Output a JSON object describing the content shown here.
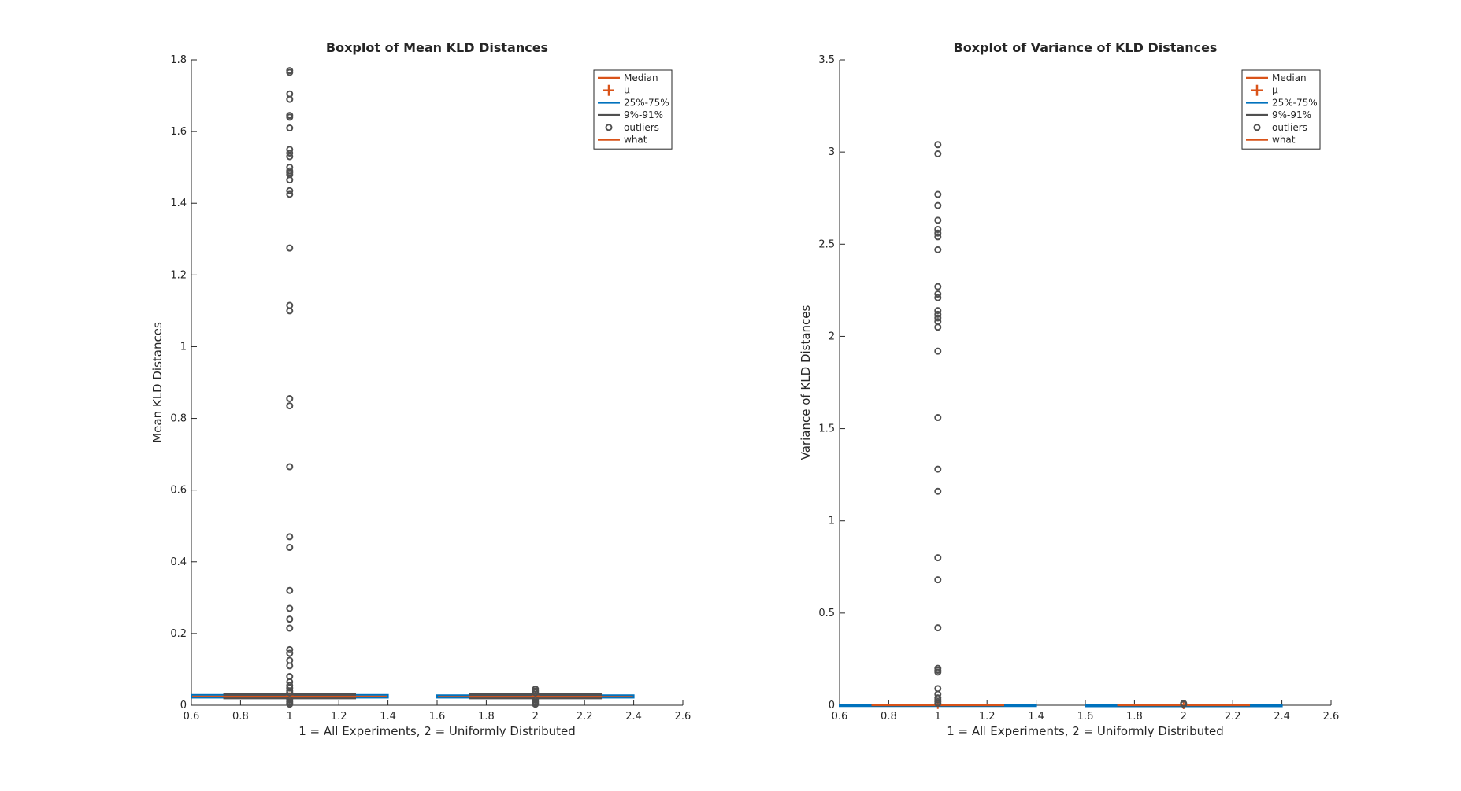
{
  "chart_data": [
    {
      "type": "box",
      "title": "Boxplot of Mean KLD Distances",
      "xlabel": "1 = All Experiments, 2 = Uniformly Distributed",
      "ylabel": "Mean KLD Distances",
      "xlim": [
        0.6,
        2.6
      ],
      "ylim": [
        0,
        1.8
      ],
      "xticks": [
        "0.6",
        "0.8",
        "1",
        "1.2",
        "1.4",
        "1.6",
        "1.8",
        "2",
        "2.2",
        "2.4",
        "2.6"
      ],
      "yticks": [
        "0",
        "0.2",
        "0.4",
        "0.6",
        "0.8",
        "1",
        "1.2",
        "1.4",
        "1.6",
        "1.8"
      ],
      "legend": {
        "position": "top-right",
        "items": [
          {
            "label": "Median",
            "marker": "line",
            "color": "#D95319"
          },
          {
            "label": "μ",
            "marker": "plus",
            "color": "#D95319"
          },
          {
            "label": "25%-75%",
            "marker": "line",
            "color": "#0072BD"
          },
          {
            "label": "9%-91%",
            "marker": "line",
            "color": "#505050"
          },
          {
            "label": "outliers",
            "marker": "circle",
            "color": "#505050"
          },
          {
            "label": "what",
            "marker": "line",
            "color": "#D95319"
          }
        ]
      },
      "boxes": [
        {
          "x": 1,
          "median": 0.024,
          "mean": 0.025,
          "q1": 0.021,
          "q3": 0.029,
          "p9": 0.02,
          "p91": 0.03,
          "outliers": [
            1.77,
            1.765,
            1.705,
            1.69,
            1.645,
            1.64,
            1.61,
            1.55,
            1.54,
            1.53,
            1.5,
            1.49,
            1.485,
            1.48,
            1.465,
            1.435,
            1.425,
            1.275,
            1.115,
            1.1,
            0.855,
            0.835,
            0.665,
            0.47,
            0.44,
            0.32,
            0.27,
            0.24,
            0.215,
            0.155,
            0.145,
            0.125,
            0.11,
            0.08,
            0.065,
            0.055,
            0.048,
            0.04,
            0.035,
            0.015,
            0.01,
            0.006,
            0.003
          ]
        },
        {
          "x": 2,
          "median": 0.024,
          "mean": 0.025,
          "q1": 0.021,
          "q3": 0.028,
          "p9": 0.02,
          "p91": 0.03,
          "outliers": [
            0.045,
            0.04,
            0.035,
            0.015,
            0.01,
            0.006,
            0.003
          ]
        }
      ]
    },
    {
      "type": "box",
      "title": "Boxplot of Variance of KLD Distances",
      "xlabel": "1 = All Experiments, 2 = Uniformly Distributed",
      "ylabel": "Variance of KLD Distances",
      "xlim": [
        0.6,
        2.6
      ],
      "ylim": [
        0,
        3.5
      ],
      "xticks": [
        "0.6",
        "0.8",
        "1",
        "1.2",
        "1.4",
        "1.6",
        "1.8",
        "2",
        "2.2",
        "2.4",
        "2.6"
      ],
      "yticks": [
        "0",
        "0.5",
        "1",
        "1.5",
        "2",
        "2.5",
        "3",
        "3.5"
      ],
      "legend": {
        "position": "top-right",
        "items": [
          {
            "label": "Median",
            "marker": "line",
            "color": "#D95319"
          },
          {
            "label": "μ",
            "marker": "plus",
            "color": "#D95319"
          },
          {
            "label": "25%-75%",
            "marker": "line",
            "color": "#0072BD"
          },
          {
            "label": "9%-91%",
            "marker": "line",
            "color": "#505050"
          },
          {
            "label": "outliers",
            "marker": "circle",
            "color": "#505050"
          },
          {
            "label": "what",
            "marker": "line",
            "color": "#D95319"
          }
        ]
      },
      "boxes": [
        {
          "x": 1,
          "median": 0.0,
          "mean": 0.001,
          "q1": 0.0,
          "q3": 0.001,
          "p9": 0.0,
          "p91": 0.001,
          "outliers": [
            3.04,
            2.99,
            2.77,
            2.71,
            2.63,
            2.58,
            2.56,
            2.54,
            2.47,
            2.27,
            2.23,
            2.21,
            2.14,
            2.12,
            2.1,
            2.08,
            2.05,
            1.92,
            1.56,
            1.28,
            1.16,
            0.8,
            0.68,
            0.42,
            0.2,
            0.19,
            0.18,
            0.09,
            0.06,
            0.04,
            0.03,
            0.02,
            0.01
          ]
        },
        {
          "x": 2,
          "median": 0.0,
          "mean": 0.0,
          "q1": 0.0,
          "q3": 0.0,
          "p9": 0.0,
          "p91": 0.0,
          "outliers": [
            0.01,
            0.005
          ]
        }
      ]
    }
  ]
}
